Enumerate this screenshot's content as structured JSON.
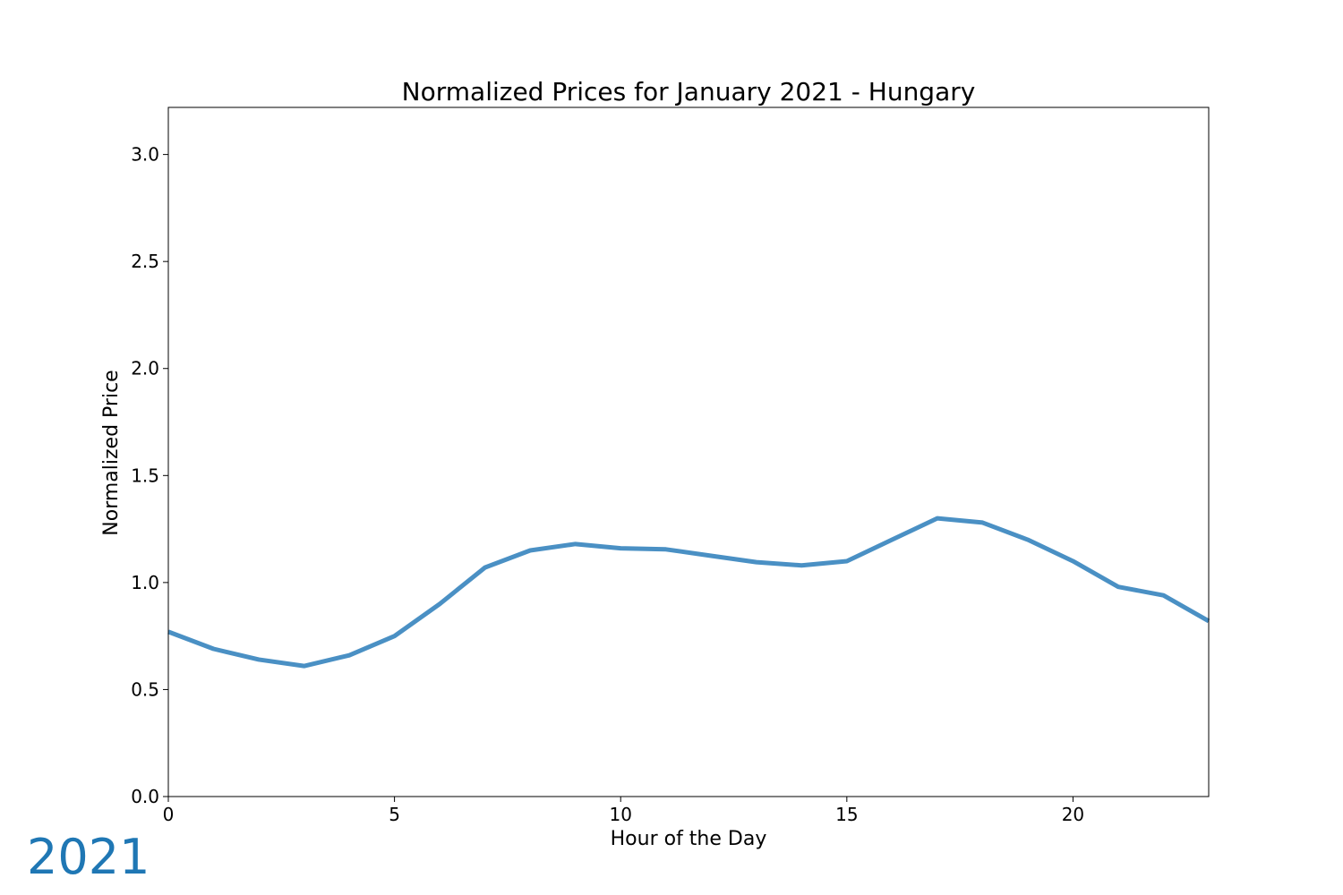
{
  "year_label": "2021",
  "colors": {
    "series_line": "#4a90c4",
    "year_label": "#1f77b4",
    "axes": "#000000",
    "background": "#ffffff"
  },
  "chart_data": {
    "type": "line",
    "title": "Normalized Prices for January 2021 - Hungary",
    "xlabel": "Hour of the Day",
    "ylabel": "Normalized Price",
    "xlim": [
      0,
      23
    ],
    "ylim": [
      0,
      3.22
    ],
    "xticks": [
      0,
      5,
      10,
      15,
      20
    ],
    "xtick_labels": [
      "0",
      "5",
      "10",
      "15",
      "20"
    ],
    "yticks": [
      0,
      0.5,
      1.0,
      1.5,
      2.0,
      2.5,
      3.0
    ],
    "ytick_labels": [
      "0.0",
      "0.5",
      "1.0",
      "1.5",
      "2.0",
      "2.5",
      "3.0"
    ],
    "grid": false,
    "legend": false,
    "x": [
      0,
      1,
      2,
      3,
      4,
      5,
      6,
      7,
      8,
      9,
      10,
      11,
      12,
      13,
      14,
      15,
      16,
      17,
      18,
      19,
      20,
      21,
      22,
      23
    ],
    "series": [
      {
        "values": [
          0.77,
          0.69,
          0.64,
          0.61,
          0.66,
          0.75,
          0.9,
          1.07,
          1.15,
          1.18,
          1.16,
          1.155,
          1.125,
          1.095,
          1.08,
          1.1,
          1.2,
          1.3,
          1.28,
          1.2,
          1.1,
          0.98,
          0.94,
          0.82
        ]
      }
    ]
  }
}
